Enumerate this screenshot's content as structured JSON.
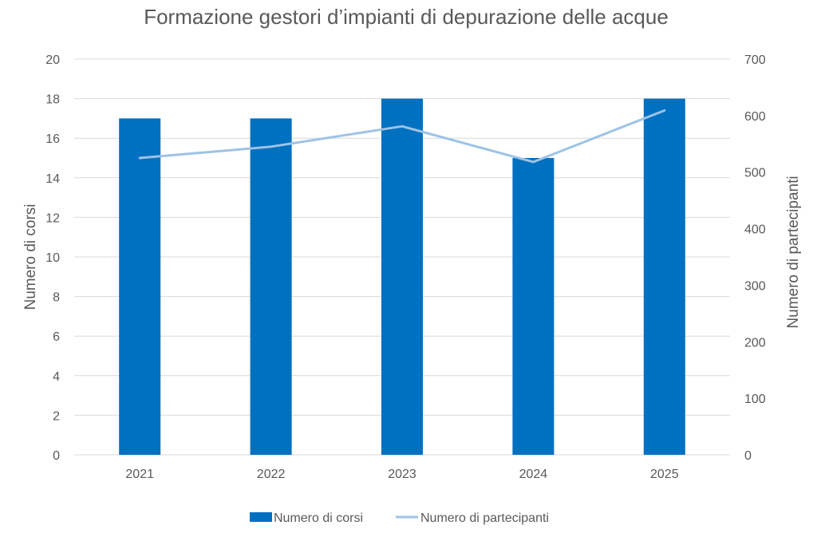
{
  "chart_data": {
    "type": "bar",
    "title": "Formazione gestori d’impianti di depurazione delle acque",
    "categories": [
      "2021",
      "2022",
      "2023",
      "2024",
      "2025"
    ],
    "series": [
      {
        "name": "Numero di corsi",
        "type": "bar",
        "axis": "left",
        "values": [
          17,
          17,
          18,
          15,
          18
        ]
      },
      {
        "name": "Numero di partecipanti",
        "type": "line",
        "axis": "right",
        "values": [
          525,
          545,
          581,
          518,
          609
        ]
      }
    ],
    "ylabel": "Numero di corsi",
    "y2label": "Numero di partecipanti",
    "ylim": [
      0,
      20
    ],
    "y2lim": [
      0,
      700
    ],
    "yticks": [
      "0",
      "2",
      "4",
      "6",
      "8",
      "10",
      "12",
      "14",
      "16",
      "18",
      "20"
    ],
    "y2ticks": [
      "0",
      "100",
      "200",
      "300",
      "400",
      "500",
      "600",
      "700"
    ],
    "grid": true,
    "legend_position": "bottom",
    "colors": {
      "bar": "#0070C0",
      "line": "#9DC3E6",
      "grid": "#D9D9D9",
      "text": "#595959"
    }
  }
}
